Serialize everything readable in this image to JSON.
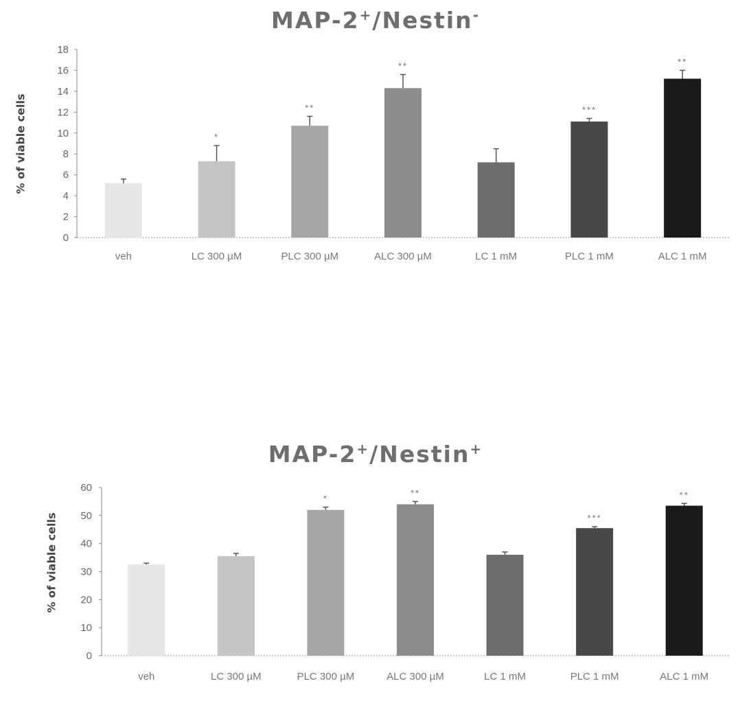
{
  "chart_data": [
    {
      "type": "bar",
      "title_main": "MAP-2",
      "title_sup1": "+",
      "title_mid": "/Nestin",
      "title_sup2": "-",
      "ylabel": "% of viable cells",
      "xlabel": "",
      "categories": [
        "veh",
        "LC 300 µM",
        "PLC 300 µM",
        "ALC 300 µM",
        "LC 1 mM",
        "PLC 1 mM",
        "ALC 1 mM"
      ],
      "values": [
        5.2,
        7.3,
        10.7,
        14.3,
        7.2,
        11.1,
        15.2
      ],
      "errors": [
        0.4,
        1.5,
        0.9,
        1.3,
        1.3,
        0.3,
        0.8
      ],
      "significance": [
        "",
        "*",
        "**",
        "**",
        "",
        "***",
        "**"
      ],
      "ylim": [
        0,
        18
      ],
      "yticks": [
        0,
        2,
        4,
        6,
        8,
        10,
        12,
        14,
        16,
        18
      ],
      "bar_colors": [
        "#e6e6e6",
        "#c4c4c4",
        "#a6a6a6",
        "#8c8c8c",
        "#6c6c6c",
        "#484848",
        "#1a1a1a"
      ],
      "grid": false,
      "legend": "none"
    },
    {
      "type": "bar",
      "title_main": "MAP-2",
      "title_sup1": "+",
      "title_mid": "/Nestin",
      "title_sup2": "+",
      "ylabel": "% of viable cells",
      "xlabel": "",
      "categories": [
        "veh",
        "LC 300 µM",
        "PLC 300 µM",
        "ALC 300 µM",
        "LC 1 mM",
        "PLC 1 mM",
        "ALC 1 mM"
      ],
      "values": [
        32.5,
        35.5,
        52,
        54,
        36,
        45.5,
        53.5
      ],
      "errors": [
        0.5,
        1.0,
        1.0,
        1.0,
        1.0,
        0.5,
        0.8
      ],
      "significance": [
        "",
        "",
        "*",
        "**",
        "",
        "***",
        "**"
      ],
      "ylim": [
        0,
        60
      ],
      "yticks": [
        0,
        10,
        20,
        30,
        40,
        50,
        60
      ],
      "bar_colors": [
        "#e6e6e6",
        "#c4c4c4",
        "#a6a6a6",
        "#8c8c8c",
        "#6c6c6c",
        "#484848",
        "#1a1a1a"
      ],
      "grid": false,
      "legend": "none"
    }
  ]
}
